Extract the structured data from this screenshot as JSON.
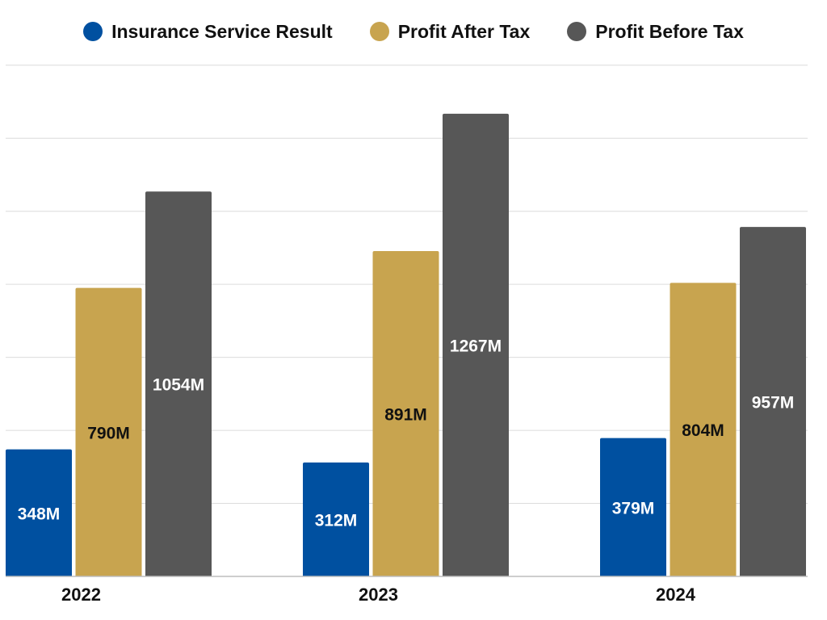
{
  "chart_data": {
    "type": "bar",
    "categories": [
      "2022",
      "2023",
      "2024"
    ],
    "series": [
      {
        "name": "Insurance Service Result",
        "values": [
          348,
          312,
          379
        ],
        "labels": [
          "348M",
          "312M",
          "379M"
        ],
        "color": "#0050a0",
        "label_color": "#ffffff"
      },
      {
        "name": "Profit After Tax",
        "values": [
          790,
          891,
          804
        ],
        "labels": [
          "790M",
          "891M",
          "804M"
        ],
        "color": "#c8a44f",
        "label_color": "#111111"
      },
      {
        "name": "Profit Before Tax",
        "values": [
          1054,
          1267,
          957
        ],
        "labels": [
          "1054M",
          "1267M",
          "957M"
        ],
        "color": "#575757",
        "label_color": "#ffffff"
      }
    ],
    "ylim": [
      0,
      1400
    ],
    "ytick_step": 200,
    "grid": true,
    "legend": "top"
  }
}
